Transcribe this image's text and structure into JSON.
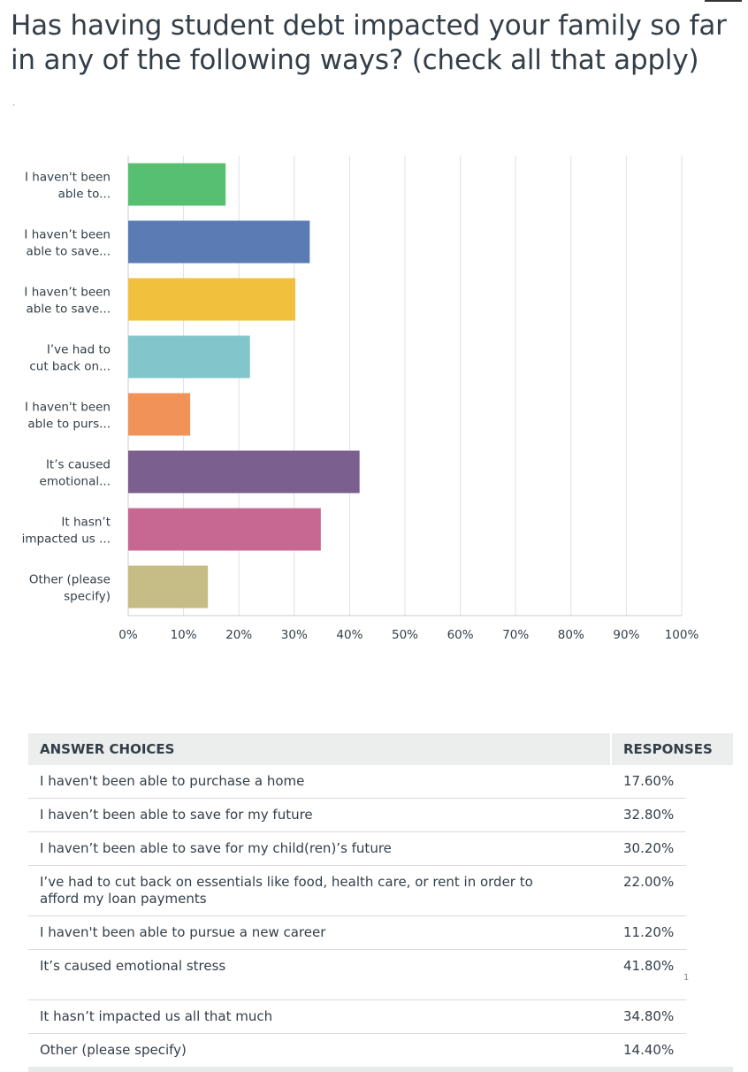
{
  "question": "Has having student debt impacted your family so far in any of the following ways? (check all that apply)",
  "mark": "ˊ",
  "edge_mark": "1",
  "chart_data": {
    "type": "bar",
    "orientation": "horizontal",
    "categories": [
      "I haven't been able to...",
      "I haven’t been able to save...",
      "I haven’t been able to save...",
      "I’ve had to cut back on...",
      "I haven't been able to purs...",
      "It’s caused emotional...",
      "It hasn’t impacted us ...",
      "Other (please specify)"
    ],
    "category_lines": [
      [
        "I haven't been",
        "able to..."
      ],
      [
        "I haven’t been",
        "able to save..."
      ],
      [
        "I haven’t been",
        "able to save..."
      ],
      [
        "I’ve had to",
        "cut back on..."
      ],
      [
        "I haven't been",
        "able to purs..."
      ],
      [
        "It’s caused",
        "emotional..."
      ],
      [
        "It hasn’t",
        "impacted us ..."
      ],
      [
        "Other (please",
        "specify)"
      ]
    ],
    "values": [
      17.6,
      32.8,
      30.2,
      22.0,
      11.2,
      41.8,
      34.8,
      14.4
    ],
    "colors": [
      "#57bf71",
      "#5b7bb5",
      "#f1c13e",
      "#82c6cc",
      "#f19259",
      "#7b5f8e",
      "#c76892",
      "#c6bc86"
    ],
    "xlim": [
      0,
      100
    ],
    "xticks": [
      "0%",
      "10%",
      "20%",
      "30%",
      "40%",
      "50%",
      "60%",
      "70%",
      "80%",
      "90%",
      "100%"
    ],
    "grid": true
  },
  "table": {
    "headers": {
      "choice": "ANSWER CHOICES",
      "responses": "RESPONSES"
    },
    "rows": [
      {
        "choice": "I haven't been able to purchase a home",
        "response": "17.60%"
      },
      {
        "choice": "I haven’t been able to save for my future",
        "response": "32.80%"
      },
      {
        "choice": "I haven’t been able to save for my child(ren)’s future",
        "response": "30.20%"
      },
      {
        "choice": "I’ve had to cut back on essentials like food, health care, or rent in order to afford my loan payments",
        "response": "22.00%"
      },
      {
        "choice": "I haven't been able to pursue a new career",
        "response": "11.20%"
      },
      {
        "choice": "It’s caused emotional stress",
        "response": "41.80%"
      },
      {
        "choice": "It hasn’t impacted us all that much",
        "response": "34.80%"
      },
      {
        "choice": "Other (please specify)",
        "response": "14.40%"
      }
    ]
  }
}
